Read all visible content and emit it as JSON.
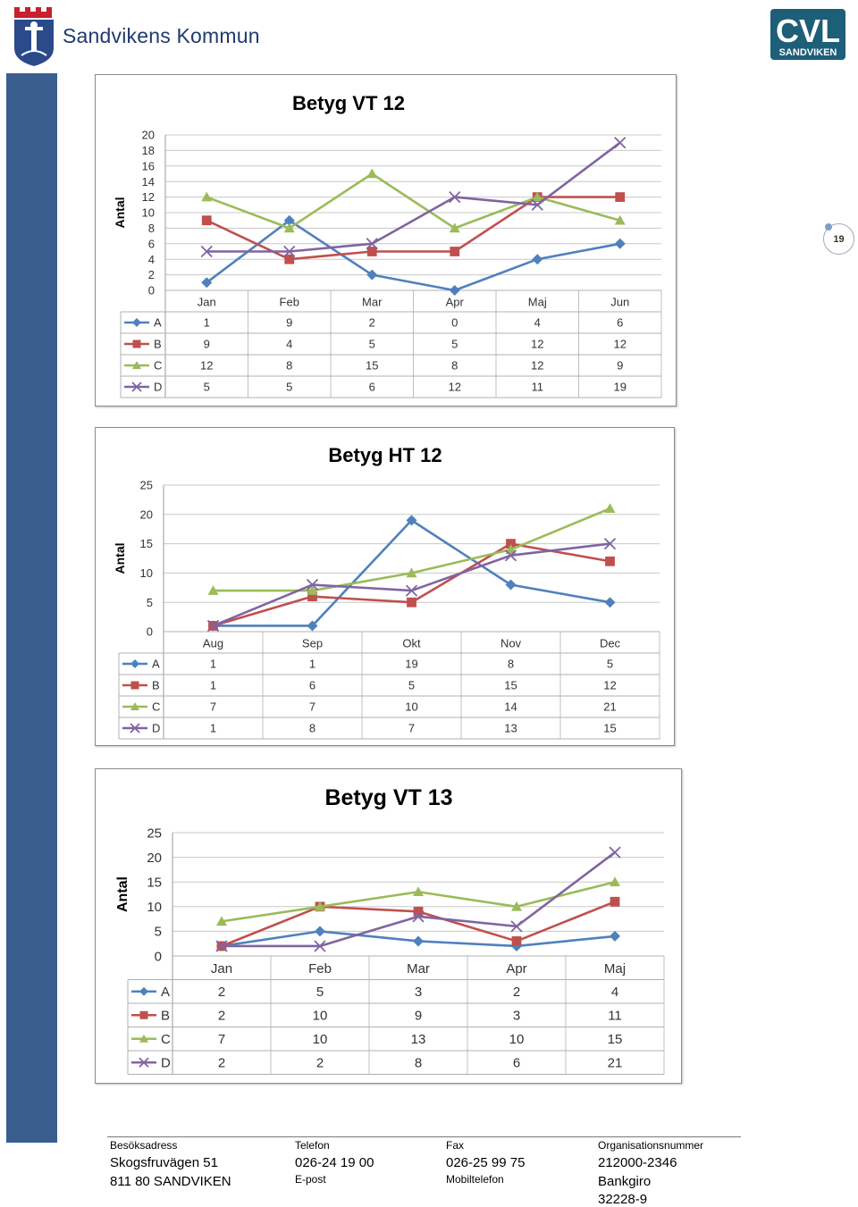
{
  "header": {
    "municipality_name": "Sandvikens Kommun",
    "cvl_logo_line1": "CVL",
    "cvl_logo_line2": "SANDVIKEN"
  },
  "page_number": "19",
  "colors": {
    "A": "#4f81bd",
    "B": "#c0504d",
    "C": "#9bbb59",
    "D": "#8064a2",
    "sidebar": "#3a5f8f"
  },
  "chart_data": [
    {
      "type": "line",
      "title": "Betyg VT 12",
      "ylabel": "Antal",
      "categories": [
        "Jan",
        "Feb",
        "Mar",
        "Apr",
        "Maj",
        "Jun"
      ],
      "ylim": [
        0,
        20
      ],
      "yticks": [
        0,
        2,
        4,
        6,
        8,
        10,
        12,
        14,
        16,
        18,
        20
      ],
      "grid": true,
      "data_table": true,
      "series": [
        {
          "name": "A",
          "values": [
            1,
            9,
            2,
            0,
            4,
            6
          ],
          "color": "#4f81bd",
          "marker": "diamond"
        },
        {
          "name": "B",
          "values": [
            9,
            4,
            5,
            5,
            12,
            12
          ],
          "color": "#c0504d",
          "marker": "square"
        },
        {
          "name": "C",
          "values": [
            12,
            8,
            15,
            8,
            12,
            9
          ],
          "color": "#9bbb59",
          "marker": "triangle"
        },
        {
          "name": "D",
          "values": [
            5,
            5,
            6,
            12,
            11,
            19
          ],
          "color": "#8064a2",
          "marker": "x"
        }
      ]
    },
    {
      "type": "line",
      "title": "Betyg HT 12",
      "ylabel": "Antal",
      "categories": [
        "Aug",
        "Sep",
        "Okt",
        "Nov",
        "Dec"
      ],
      "ylim": [
        0,
        25
      ],
      "yticks": [
        0,
        5,
        10,
        15,
        20,
        25
      ],
      "grid": true,
      "data_table": true,
      "series": [
        {
          "name": "A",
          "values": [
            1,
            1,
            19,
            8,
            5
          ],
          "color": "#4f81bd",
          "marker": "diamond"
        },
        {
          "name": "B",
          "values": [
            1,
            6,
            5,
            15,
            12
          ],
          "color": "#c0504d",
          "marker": "square"
        },
        {
          "name": "C",
          "values": [
            7,
            7,
            10,
            14,
            21
          ],
          "color": "#9bbb59",
          "marker": "triangle"
        },
        {
          "name": "D",
          "values": [
            1,
            8,
            7,
            13,
            15
          ],
          "color": "#8064a2",
          "marker": "x"
        }
      ]
    },
    {
      "type": "line",
      "title": "Betyg VT 13",
      "ylabel": "Antal",
      "categories": [
        "Jan",
        "Feb",
        "Mar",
        "Apr",
        "Maj"
      ],
      "ylim": [
        0,
        25
      ],
      "yticks": [
        0,
        5,
        10,
        15,
        20,
        25
      ],
      "grid": true,
      "data_table": true,
      "series": [
        {
          "name": "A",
          "values": [
            2,
            5,
            3,
            2,
            4
          ],
          "color": "#4f81bd",
          "marker": "diamond"
        },
        {
          "name": "B",
          "values": [
            2,
            10,
            9,
            3,
            11
          ],
          "color": "#c0504d",
          "marker": "square"
        },
        {
          "name": "C",
          "values": [
            7,
            10,
            13,
            10,
            15
          ],
          "color": "#9bbb59",
          "marker": "triangle"
        },
        {
          "name": "D",
          "values": [
            2,
            2,
            8,
            6,
            21
          ],
          "color": "#8064a2",
          "marker": "x"
        }
      ]
    }
  ],
  "footer": {
    "visit_label": "Besöksadress",
    "visit_street": "Skogsfruvägen 51",
    "visit_city": "811 80 SANDVIKEN",
    "phone_label": "Telefon",
    "phone_value": "026-24 19 00",
    "email_label": "E-post",
    "fax_label": "Fax",
    "fax_value": "026-25 99 75",
    "mobile_label": "Mobiltelefon",
    "org_label": "Organisationsnummer",
    "org_value": "212000-2346",
    "bankgiro_label": "Bankgiro",
    "bankgiro_value": "32228-9"
  }
}
